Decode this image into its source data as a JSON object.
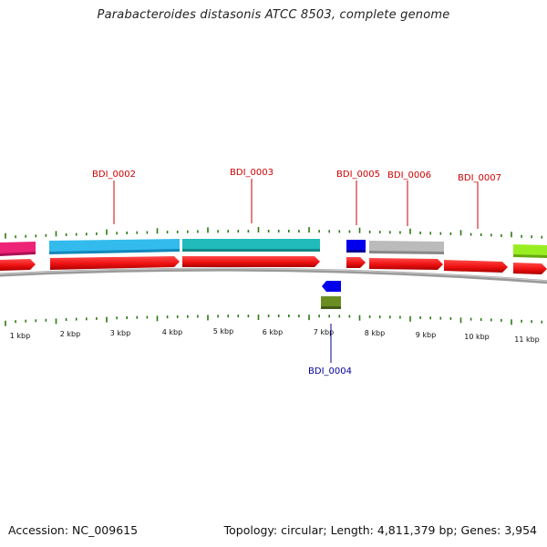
{
  "title": "Parabacteroides distasonis ATCC 8503, complete genome",
  "footer": {
    "accession": "Accession: NC_009615",
    "summary": "Topology: circular; Length: 4,811,379 bp; Genes: 3,954"
  },
  "scale": {
    "labels": [
      "1 kbp",
      "2 kbp",
      "3 kbp",
      "4 kbp",
      "5 kbp",
      "6 kbp",
      "7 kbp",
      "8 kbp",
      "9 kbp",
      "10 kbp",
      "11 kbp"
    ]
  },
  "gene_labels": {
    "above": [
      "BDI_0002",
      "BDI_0003",
      "BDI_0005",
      "BDI_0006",
      "BDI_0007"
    ],
    "below": [
      "BDI_0004"
    ]
  },
  "colors": {
    "label_above": "#cc0000",
    "label_below": "#000099",
    "tick": "#2a7a14",
    "genome_line": "#7a7a7a",
    "cds": "#ee1111"
  },
  "features": [
    {
      "name": "feature-pink",
      "color": "#ee2277",
      "strand": "+"
    },
    {
      "name": "feature-BDI_0002",
      "color": "#33bbee",
      "strand": "+"
    },
    {
      "name": "feature-BDI_0003",
      "color": "#22bbbb",
      "strand": "+"
    },
    {
      "name": "feature-BDI_0005",
      "color": "#0000ee",
      "strand": "+"
    },
    {
      "name": "feature-BDI_0006",
      "color": "#bbbbbb",
      "strand": "+"
    },
    {
      "name": "feature-lime",
      "color": "#99ee22",
      "strand": "+"
    },
    {
      "name": "feature-BDI_0004-blue",
      "color": "#0000ee",
      "strand": "-"
    },
    {
      "name": "feature-BDI_0004-olive",
      "color": "#6b8e23",
      "strand": "-"
    }
  ]
}
